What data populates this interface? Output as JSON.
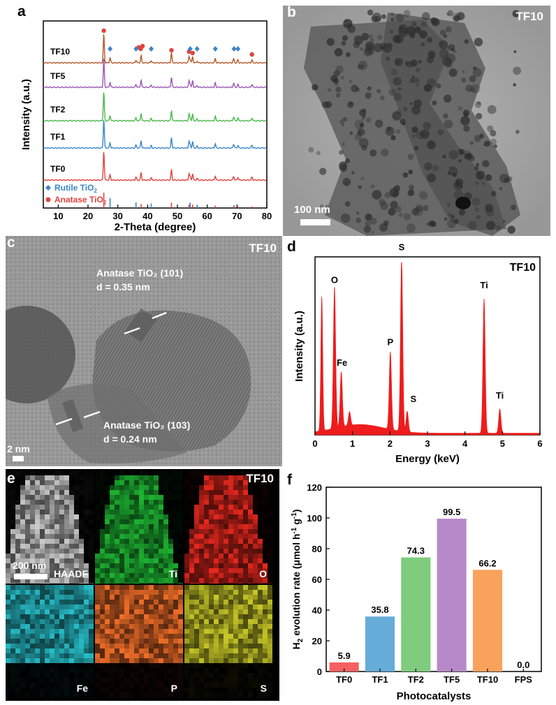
{
  "panels": {
    "a": {
      "label": "a",
      "xlabel": "2-Theta (degree)",
      "ylabel": "Intensity (a.u.)",
      "xticks": [
        "10",
        "20",
        "30",
        "40",
        "50",
        "60",
        "70",
        "80"
      ],
      "samples": [
        "TF10",
        "TF5",
        "TF2",
        "TF1",
        "TF0"
      ],
      "legend_rutile_text": "Rutile TiO",
      "legend_anatase_text": "Anatase TiO",
      "legend_sub": "2",
      "colors": {
        "TF10": "#b5592a",
        "TF5": "#9b59b6",
        "TF2": "#4cb84c",
        "TF1": "#3c86c6",
        "TF0": "#e0433f",
        "rutile": "#3c86c6",
        "anatase": "#e0433f"
      }
    },
    "b": {
      "label": "b",
      "sample": "TF10",
      "scale": "100 nm"
    },
    "c": {
      "label": "c",
      "sample": "TF10",
      "annot1_line1": "Anatase TiO₂ (101)",
      "annot1_line2": "d = 0.35 nm",
      "annot2_line1": "Anatase TiO₂ (103)",
      "annot2_line2": "d = 0.24 nm",
      "scale": "2 nm"
    },
    "d": {
      "label": "d",
      "sample": "TF10",
      "xlabel": "Energy (keV)",
      "ylabel": "Intensity (a.u.)",
      "xticks": [
        "0",
        "1",
        "2",
        "3",
        "4",
        "5",
        "6"
      ],
      "peaks": [
        "O",
        "Fe",
        "P",
        "S",
        "S",
        "Ti",
        "Ti"
      ],
      "color": "#ee1c1c"
    },
    "e": {
      "label": "e",
      "sample": "TF10",
      "scale": "200 nm",
      "tiles": [
        "HAADF",
        "Ti",
        "O",
        "Fe",
        "P",
        "S"
      ]
    }
  },
  "chart_data": [
    {
      "type": "bar",
      "panel": "f",
      "title": "",
      "xlabel": "Photocatalysts",
      "ylabel_parts": [
        "H",
        "2",
        " evolution rate (μmol h",
        "-1",
        " g",
        "-1",
        ")"
      ],
      "categories": [
        "TF0",
        "TF1",
        "TF2",
        "TF5",
        "TF10",
        "FPS"
      ],
      "values": [
        5.9,
        35.8,
        74.3,
        99.5,
        66.2,
        0.0
      ],
      "value_labels": [
        "5.9",
        "35.8",
        "74.3",
        "99.5",
        "66.2",
        "0.0"
      ],
      "colors": [
        "#f46060",
        "#65acd8",
        "#7fcc7f",
        "#b889c9",
        "#f9a25c",
        "#888888"
      ],
      "ylim": [
        0,
        120
      ],
      "yticks": [
        "0",
        "20",
        "40",
        "60",
        "80",
        "100",
        "120"
      ],
      "label": "f"
    }
  ]
}
